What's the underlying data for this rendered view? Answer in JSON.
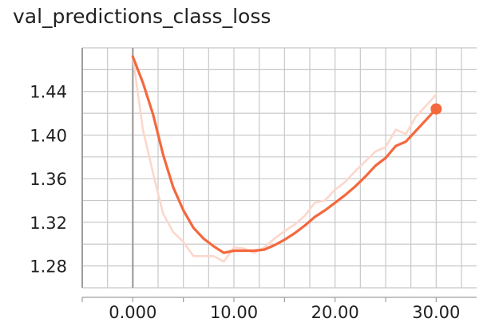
{
  "chart_data": {
    "type": "line",
    "title": "val_predictions_class_loss",
    "xlabel": "",
    "ylabel": "",
    "xlim": [
      -5,
      34
    ],
    "ylim": [
      1.26,
      1.48
    ],
    "x_ticks": [
      0,
      10,
      20,
      30
    ],
    "x_tick_labels": [
      "0.000",
      "10.00",
      "20.00",
      "30.00"
    ],
    "y_ticks": [
      1.28,
      1.32,
      1.36,
      1.4,
      1.44
    ],
    "y_tick_labels": [
      "1.28",
      "1.32",
      "1.36",
      "1.40",
      "1.44"
    ],
    "grid": true,
    "legend": "none",
    "series": [
      {
        "role": "raw",
        "color": "#fcd7cc",
        "x": [
          0,
          1,
          2,
          3,
          4,
          5,
          6,
          7,
          8,
          9,
          10,
          11,
          12,
          13,
          14,
          15,
          16,
          17,
          18,
          19,
          20,
          21,
          22,
          23,
          24,
          25,
          26,
          27,
          28,
          29,
          30
        ],
        "y": [
          1.472,
          1.405,
          1.365,
          1.328,
          1.311,
          1.302,
          1.289,
          1.289,
          1.289,
          1.284,
          1.297,
          1.296,
          1.292,
          1.297,
          1.305,
          1.312,
          1.318,
          1.326,
          1.338,
          1.34,
          1.35,
          1.357,
          1.367,
          1.376,
          1.385,
          1.389,
          1.405,
          1.401,
          1.417,
          1.427,
          1.437
        ]
      },
      {
        "role": "smoothed",
        "color": "#f4683d",
        "x": [
          0,
          1,
          2,
          3,
          4,
          5,
          6,
          7,
          8,
          9,
          10,
          11,
          12,
          13,
          14,
          15,
          16,
          17,
          18,
          19,
          20,
          21,
          22,
          23,
          24,
          25,
          26,
          27,
          28,
          29,
          30
        ],
        "y": [
          1.472,
          1.448,
          1.419,
          1.382,
          1.352,
          1.331,
          1.315,
          1.305,
          1.298,
          1.292,
          1.294,
          1.294,
          1.294,
          1.295,
          1.299,
          1.304,
          1.31,
          1.317,
          1.325,
          1.331,
          1.338,
          1.345,
          1.353,
          1.362,
          1.372,
          1.379,
          1.39,
          1.394,
          1.404,
          1.414,
          1.424
        ]
      }
    ],
    "highlight_point": {
      "x": 30,
      "y": 1.424,
      "color": "#f4683d"
    },
    "zero_line_color": "#9e9e9e",
    "grid_color": "#c8c8c8"
  }
}
